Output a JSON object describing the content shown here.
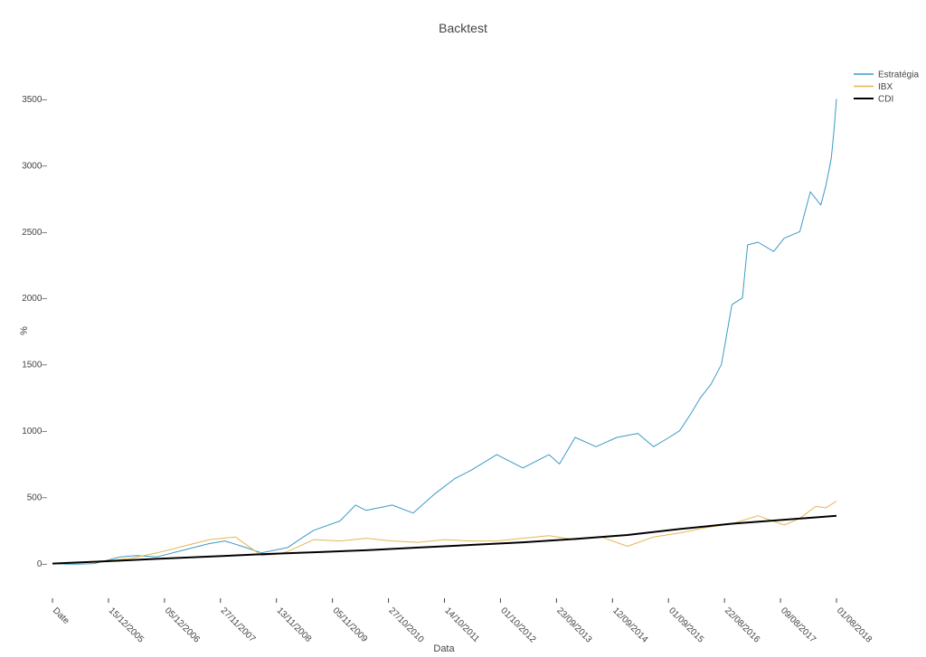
{
  "chart_data": {
    "type": "line",
    "title": "Backtest",
    "xlabel": "Data",
    "ylabel": "%",
    "ylim": [
      -180,
      3700
    ],
    "yticks": [
      0,
      500,
      1000,
      1500,
      2000,
      2500,
      3000,
      3500
    ],
    "x_tick_labels": [
      "Date",
      "15/12/2005",
      "05/12/2006",
      "27/11/2007",
      "13/11/2008",
      "05/11/2009",
      "27/10/2010",
      "14/10/2011",
      "01/10/2012",
      "23/09/2013",
      "12/09/2014",
      "01/09/2015",
      "22/08/2016",
      "09/08/2017",
      "01/08/2018"
    ],
    "x_range": [
      0,
      15
    ],
    "legend_position": "top-right",
    "grid": false,
    "series": [
      {
        "name": "Estratégia",
        "color": "#3b9ac6",
        "x": [
          0,
          0.3,
          0.5,
          0.8,
          1.0,
          1.3,
          1.6,
          2.0,
          2.5,
          3.0,
          3.3,
          3.7,
          4.0,
          4.5,
          4.8,
          5.0,
          5.5,
          5.8,
          6.0,
          6.5,
          6.9,
          7.3,
          7.7,
          8.0,
          8.5,
          9.0,
          9.5,
          9.7,
          10.0,
          10.4,
          10.8,
          11.2,
          11.5,
          11.8,
          12.0,
          12.2,
          12.4,
          12.6,
          12.8,
          13.0,
          13.2,
          13.3,
          13.5,
          13.8,
          14.0,
          14.3,
          14.5,
          14.7,
          14.8,
          14.9,
          14.95,
          15.0
        ],
        "y": [
          0,
          -5,
          -5,
          0,
          20,
          50,
          60,
          50,
          100,
          150,
          170,
          120,
          80,
          120,
          200,
          250,
          320,
          440,
          400,
          440,
          380,
          520,
          640,
          700,
          820,
          720,
          820,
          750,
          950,
          880,
          950,
          980,
          880,
          950,
          1000,
          1120,
          1250,
          1350,
          1500,
          1950,
          2000,
          2400,
          2420,
          2350,
          2450,
          2500,
          2800,
          2700,
          2850,
          3050,
          3250,
          3500
        ]
      },
      {
        "name": "IBX",
        "color": "#e5b653",
        "x": [
          0,
          0.5,
          1.0,
          1.5,
          2.0,
          2.5,
          3.0,
          3.5,
          4.0,
          4.3,
          4.5,
          5.0,
          5.5,
          6.0,
          6.5,
          7.0,
          7.5,
          8.0,
          8.5,
          9.0,
          9.5,
          10.0,
          10.5,
          11.0,
          11.5,
          12.0,
          12.5,
          13.0,
          13.5,
          14.0,
          14.3,
          14.6,
          14.8,
          15.0
        ],
        "y": [
          0,
          10,
          20,
          40,
          80,
          130,
          180,
          200,
          60,
          70,
          90,
          180,
          170,
          190,
          170,
          160,
          180,
          170,
          170,
          190,
          210,
          180,
          200,
          130,
          200,
          230,
          270,
          300,
          360,
          290,
          340,
          430,
          420,
          470
        ]
      },
      {
        "name": "CDI",
        "color": "#000000",
        "x": [
          0,
          1,
          2,
          3,
          4,
          5,
          6,
          7,
          8,
          9,
          10,
          11,
          12,
          13,
          14,
          15
        ],
        "y": [
          0,
          17,
          35,
          52,
          70,
          85,
          100,
          120,
          140,
          160,
          185,
          215,
          260,
          300,
          330,
          360
        ]
      }
    ]
  }
}
